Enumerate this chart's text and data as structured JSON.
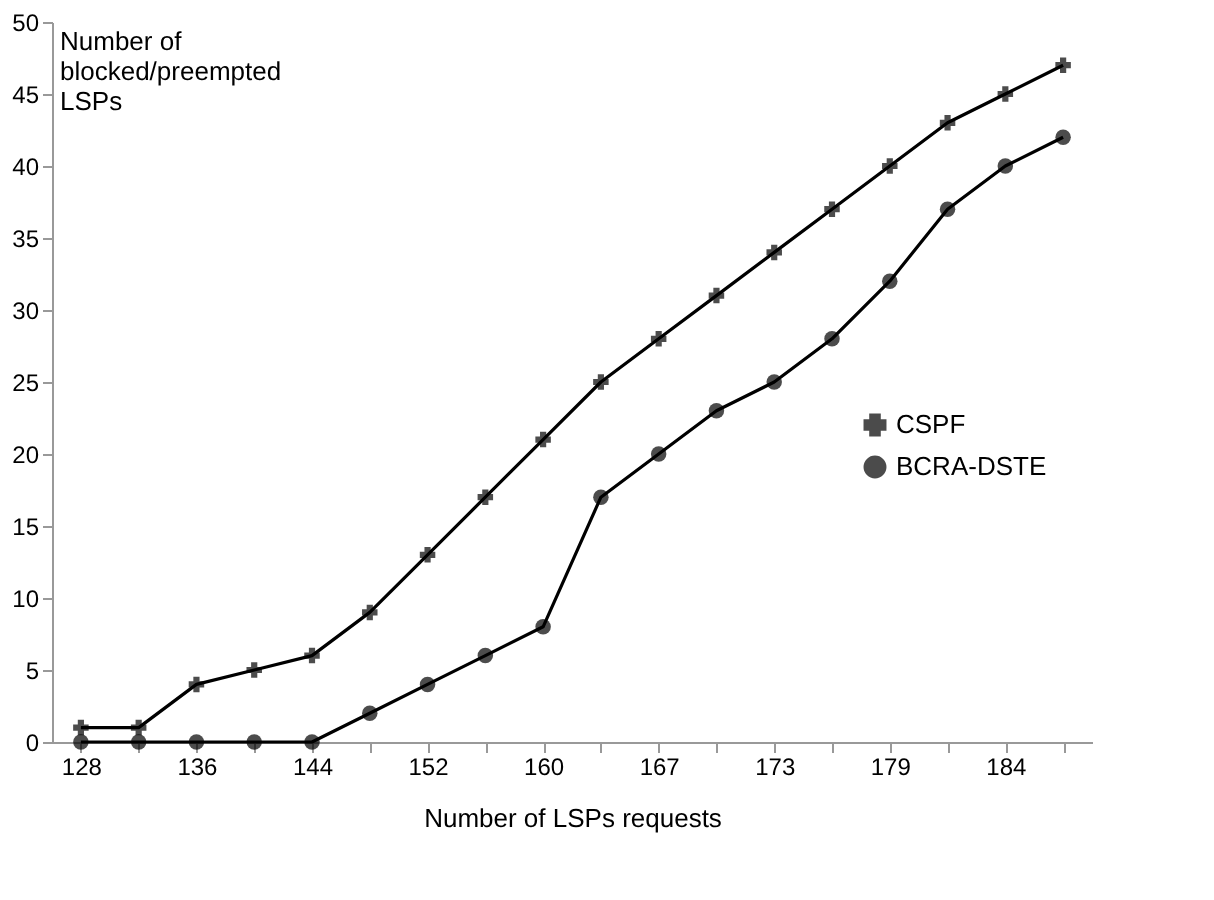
{
  "chart_data": {
    "type": "line",
    "xlabel": "Number of LSPs requests",
    "ylabel": "Number of blocked/preempted LSPs",
    "categories": [
      "128",
      null,
      "136",
      null,
      "144",
      null,
      "152",
      null,
      "160",
      null,
      "167",
      null,
      "173",
      null,
      "179",
      null,
      "184",
      null
    ],
    "series": [
      {
        "name": "CSPF",
        "color": "#000000",
        "marker": "cross",
        "values": [
          1,
          1,
          4,
          5,
          6,
          9,
          13,
          17,
          21,
          25,
          28,
          31,
          34,
          37,
          40,
          43,
          45,
          47
        ]
      },
      {
        "name": "BCRA-DSTE",
        "color": "#000000",
        "marker": "circle",
        "values": [
          0,
          0,
          0,
          0,
          0,
          2,
          4,
          6,
          8,
          17,
          20,
          23,
          25,
          28,
          32,
          37,
          40,
          42
        ]
      }
    ],
    "ylim": [
      0,
      50
    ],
    "yticks": [
      0,
      5,
      10,
      15,
      20,
      25,
      30,
      35,
      40,
      45,
      50
    ],
    "legend": "right",
    "grid": false,
    "line_style": "solid"
  }
}
